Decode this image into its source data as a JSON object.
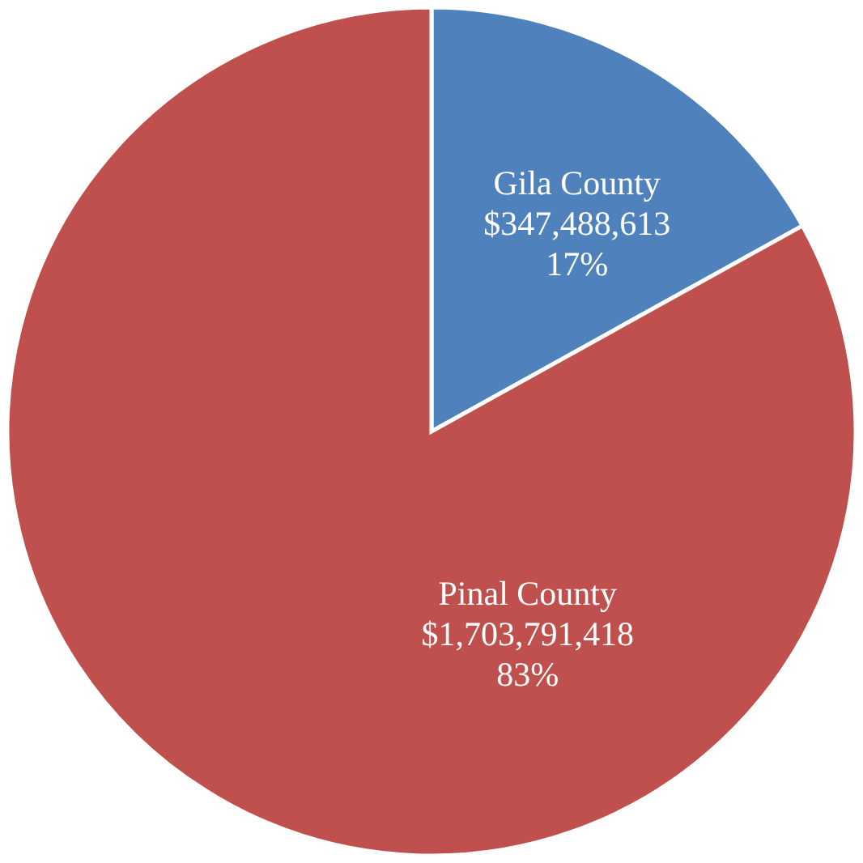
{
  "chart_data": {
    "type": "pie",
    "categories": [
      "Gila County",
      "Pinal County"
    ],
    "values": [
      347488613,
      1703791418
    ],
    "colors": [
      "#4f81bd",
      "#c0504d"
    ],
    "value_labels": [
      "$347,488,613\n17%",
      "$1,703,791,418\n83%"
    ]
  }
}
